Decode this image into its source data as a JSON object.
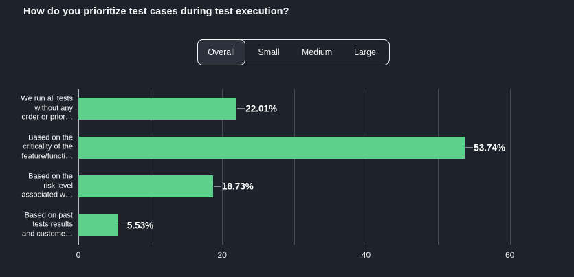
{
  "title": "How do you prioritize test cases during test execution?",
  "tabs": {
    "items": [
      {
        "id": "overall",
        "label": "Overall",
        "selected": true
      },
      {
        "id": "small",
        "label": "Small",
        "selected": false
      },
      {
        "id": "medium",
        "label": "Medium",
        "selected": false
      },
      {
        "id": "large",
        "label": "Large",
        "selected": false
      }
    ]
  },
  "chart_data": {
    "type": "bar",
    "orientation": "horizontal",
    "title": "How do you prioritize test cases during test execution?",
    "categories": [
      "We run all tests without any order or prior…",
      "Based on the criticality of the feature/functi…",
      "Based on the risk level associated w…",
      "Based on past tests results and custome…"
    ],
    "category_lines": [
      [
        "We run all tests",
        "without any",
        "order or prior…"
      ],
      [
        "Based on the",
        "criticality of the",
        "feature/functi…"
      ],
      [
        "Based on the",
        "risk level",
        "associated w…"
      ],
      [
        "Based on past",
        "tests results",
        "and custome…"
      ]
    ],
    "values": [
      22.01,
      53.74,
      18.73,
      5.53
    ],
    "value_labels": [
      "22.01%",
      "53.74%",
      "18.73%",
      "5.53%"
    ],
    "xlabel": "",
    "ylabel": "",
    "xlim": [
      0,
      65
    ],
    "x_ticks": [
      0,
      10,
      20,
      30,
      40,
      50,
      60
    ],
    "x_tick_labels": [
      "0",
      "",
      "20",
      "",
      "40",
      "",
      "60"
    ],
    "grid": true,
    "legend_position": "none",
    "bar_color": "#5dd08b"
  },
  "colors": {
    "background": "#1e232b",
    "bar": "#5dd08b",
    "gridline": "#454b57",
    "axis_line": "#b7bbc2",
    "leader_line": "#868b94",
    "text": "#f2f3f5",
    "tab_border": "#f5f6f7",
    "tab_selected_bg": "#2c313c"
  }
}
